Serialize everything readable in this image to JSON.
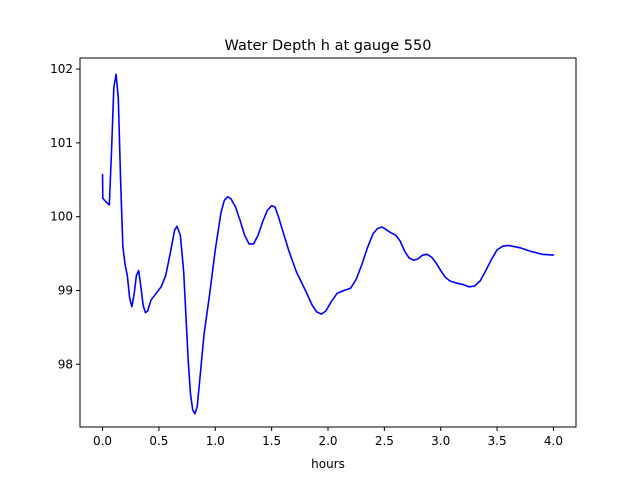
{
  "chart_data": {
    "type": "line",
    "title": "Water Depth h at gauge 550",
    "xlabel": "hours",
    "ylabel": "",
    "xlim": [
      -0.2,
      4.2
    ],
    "ylim": [
      97.15,
      102.15
    ],
    "xticks": [
      0.0,
      0.5,
      1.0,
      1.5,
      2.0,
      2.5,
      3.0,
      3.5,
      4.0
    ],
    "xtick_labels": [
      "0.0",
      "0.5",
      "1.0",
      "1.5",
      "2.0",
      "2.5",
      "3.0",
      "3.5",
      "4.0"
    ],
    "yticks": [
      98,
      99,
      100,
      101,
      102
    ],
    "ytick_labels": [
      "98",
      "99",
      "100",
      "101",
      "102"
    ],
    "grid": false,
    "series": [
      {
        "color": "#0000ff",
        "points": [
          [
            0.0,
            100.57
          ],
          [
            0.002,
            100.25
          ],
          [
            0.03,
            100.2
          ],
          [
            0.06,
            100.16
          ],
          [
            0.08,
            100.9
          ],
          [
            0.1,
            101.75
          ],
          [
            0.12,
            101.93
          ],
          [
            0.14,
            101.6
          ],
          [
            0.16,
            100.5
          ],
          [
            0.18,
            99.6
          ],
          [
            0.2,
            99.35
          ],
          [
            0.22,
            99.2
          ],
          [
            0.24,
            98.9
          ],
          [
            0.26,
            98.78
          ],
          [
            0.28,
            98.95
          ],
          [
            0.3,
            99.2
          ],
          [
            0.32,
            99.27
          ],
          [
            0.34,
            99.05
          ],
          [
            0.36,
            98.8
          ],
          [
            0.38,
            98.7
          ],
          [
            0.4,
            98.72
          ],
          [
            0.43,
            98.87
          ],
          [
            0.48,
            98.97
          ],
          [
            0.52,
            99.05
          ],
          [
            0.56,
            99.2
          ],
          [
            0.6,
            99.5
          ],
          [
            0.64,
            99.82
          ],
          [
            0.66,
            99.87
          ],
          [
            0.69,
            99.75
          ],
          [
            0.72,
            99.25
          ],
          [
            0.74,
            98.65
          ],
          [
            0.76,
            98.05
          ],
          [
            0.78,
            97.6
          ],
          [
            0.8,
            97.38
          ],
          [
            0.82,
            97.33
          ],
          [
            0.84,
            97.43
          ],
          [
            0.86,
            97.75
          ],
          [
            0.9,
            98.4
          ],
          [
            0.95,
            98.95
          ],
          [
            1.0,
            99.55
          ],
          [
            1.05,
            100.05
          ],
          [
            1.08,
            100.22
          ],
          [
            1.11,
            100.27
          ],
          [
            1.14,
            100.24
          ],
          [
            1.18,
            100.13
          ],
          [
            1.22,
            99.95
          ],
          [
            1.26,
            99.75
          ],
          [
            1.3,
            99.63
          ],
          [
            1.34,
            99.63
          ],
          [
            1.38,
            99.75
          ],
          [
            1.42,
            99.93
          ],
          [
            1.46,
            100.08
          ],
          [
            1.5,
            100.15
          ],
          [
            1.53,
            100.13
          ],
          [
            1.56,
            100.0
          ],
          [
            1.6,
            99.8
          ],
          [
            1.65,
            99.55
          ],
          [
            1.72,
            99.25
          ],
          [
            1.8,
            99.0
          ],
          [
            1.86,
            98.8
          ],
          [
            1.9,
            98.71
          ],
          [
            1.94,
            98.68
          ],
          [
            1.98,
            98.72
          ],
          [
            2.03,
            98.85
          ],
          [
            2.08,
            98.96
          ],
          [
            2.14,
            99.0
          ],
          [
            2.2,
            99.03
          ],
          [
            2.25,
            99.15
          ],
          [
            2.3,
            99.35
          ],
          [
            2.35,
            99.58
          ],
          [
            2.4,
            99.77
          ],
          [
            2.44,
            99.84
          ],
          [
            2.48,
            99.86
          ],
          [
            2.52,
            99.82
          ],
          [
            2.56,
            99.78
          ],
          [
            2.6,
            99.75
          ],
          [
            2.64,
            99.67
          ],
          [
            2.68,
            99.53
          ],
          [
            2.72,
            99.44
          ],
          [
            2.76,
            99.41
          ],
          [
            2.8,
            99.43
          ],
          [
            2.84,
            99.48
          ],
          [
            2.88,
            99.49
          ],
          [
            2.92,
            99.45
          ],
          [
            2.96,
            99.37
          ],
          [
            3.0,
            99.27
          ],
          [
            3.04,
            99.18
          ],
          [
            3.08,
            99.13
          ],
          [
            3.14,
            99.1
          ],
          [
            3.2,
            99.08
          ],
          [
            3.25,
            99.05
          ],
          [
            3.3,
            99.06
          ],
          [
            3.35,
            99.13
          ],
          [
            3.4,
            99.27
          ],
          [
            3.45,
            99.42
          ],
          [
            3.5,
            99.55
          ],
          [
            3.55,
            99.6
          ],
          [
            3.6,
            99.61
          ],
          [
            3.7,
            99.58
          ],
          [
            3.8,
            99.53
          ],
          [
            3.9,
            99.49
          ],
          [
            4.0,
            99.48
          ]
        ]
      }
    ]
  }
}
